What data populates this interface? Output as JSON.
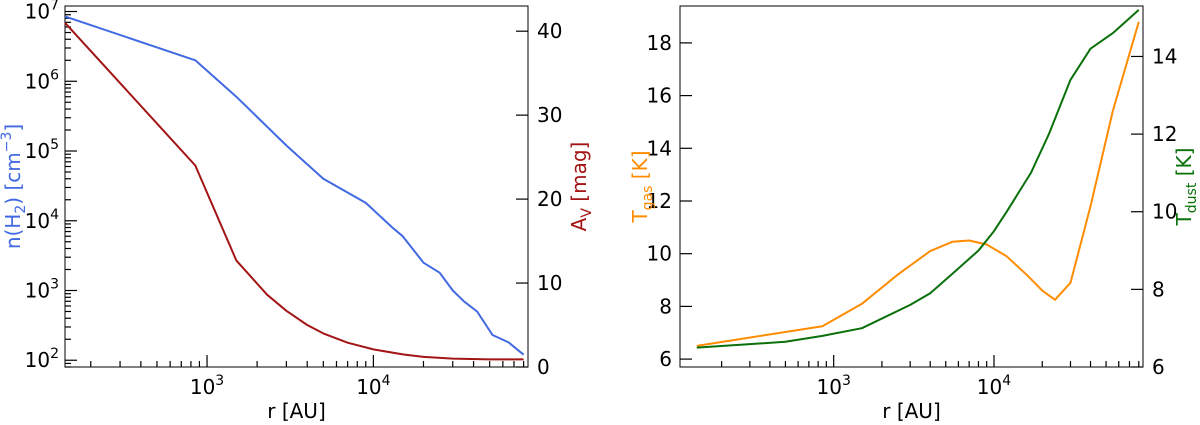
{
  "colors": {
    "density": "#4169e1",
    "av": "#a31515",
    "tgas": "#ff8c00",
    "tdust": "#0a700a"
  },
  "chart_data": [
    {
      "type": "line",
      "xscale": "log",
      "xlim": [
        140,
        85000
      ],
      "xlabel": "r [AU]",
      "xticks": [
        {
          "value": 1000,
          "base": "10",
          "exp": "3"
        },
        {
          "value": 10000,
          "base": "10",
          "exp": "4"
        }
      ],
      "y_left": {
        "scale": "log",
        "lim": [
          80,
          12000000
        ],
        "label": {
          "prefix": "n(H",
          "sub": "2",
          "middle": ") [cm",
          "sup": "−3",
          "suffix": "]"
        },
        "ticks": [
          {
            "value": 100,
            "base": "10",
            "exp": "2"
          },
          {
            "value": 1000,
            "base": "10",
            "exp": "3"
          },
          {
            "value": 10000,
            "base": "10",
            "exp": "4"
          },
          {
            "value": 100000,
            "base": "10",
            "exp": "5"
          },
          {
            "value": 1000000,
            "base": "10",
            "exp": "6"
          },
          {
            "value": 10000000,
            "base": "10",
            "exp": "7"
          }
        ]
      },
      "y_right": {
        "scale": "linear",
        "lim": [
          0,
          43
        ],
        "label": {
          "prefix": "A",
          "sub": "V",
          "suffix": " [mag]"
        },
        "ticks": [
          "0",
          "10",
          "20",
          "30",
          "40"
        ]
      },
      "series": [
        {
          "key": "density",
          "axis": "left",
          "x": [
            140,
            850,
            1500,
            3000,
            5000,
            9000,
            13000,
            15000,
            20000,
            25000,
            30000,
            35000,
            42000,
            52000,
            65000,
            80000
          ],
          "y": [
            8500000,
            2000000,
            600000,
            120000,
            40000,
            18000,
            8000,
            6000,
            2500,
            1800,
            1000,
            700,
            500,
            230,
            180,
            120
          ]
        },
        {
          "key": "av",
          "axis": "right",
          "x": [
            140,
            850,
            1500,
            2300,
            3000,
            4000,
            5000,
            7000,
            10000,
            15000,
            20000,
            30000,
            50000,
            80000
          ],
          "y": [
            41,
            24,
            12.7,
            8.6,
            6.7,
            5.0,
            4.0,
            2.9,
            2.1,
            1.5,
            1.2,
            1.0,
            0.9,
            0.9
          ]
        }
      ]
    },
    {
      "type": "line",
      "xscale": "log",
      "xlim": [
        110,
        85000
      ],
      "xlabel": "r [AU]",
      "xticks": [
        {
          "value": 1000,
          "base": "10",
          "exp": "3"
        },
        {
          "value": 10000,
          "base": "10",
          "exp": "4"
        }
      ],
      "y_left": {
        "scale": "linear",
        "lim": [
          5.7,
          19.4
        ],
        "label": {
          "prefix": "T",
          "sub": "gas",
          "suffix": " [K]"
        },
        "ticks": [
          "6",
          "8",
          "10",
          "12",
          "14",
          "16",
          "18"
        ]
      },
      "y_right": {
        "scale": "linear",
        "lim": [
          6.0,
          15.3
        ],
        "label": {
          "prefix": "T",
          "sub": "dust",
          "suffix": " [K]"
        },
        "ticks": [
          "6",
          "8",
          "10",
          "12",
          "14"
        ]
      },
      "series": [
        {
          "key": "tgas",
          "axis": "left",
          "x": [
            140,
            850,
            1500,
            2500,
            4000,
            5500,
            7000,
            9000,
            12000,
            16000,
            20000,
            24000,
            30000,
            40000,
            55000,
            80000
          ],
          "y": [
            6.5,
            7.25,
            8.1,
            9.2,
            10.1,
            10.45,
            10.5,
            10.35,
            9.9,
            9.2,
            8.6,
            8.25,
            8.9,
            11.8,
            15.4,
            18.8
          ]
        },
        {
          "key": "tdust",
          "axis": "right",
          "x": [
            140,
            500,
            850,
            1500,
            3000,
            4000,
            5500,
            8000,
            10000,
            12000,
            17000,
            22000,
            30000,
            40000,
            55000,
            80000
          ],
          "y": [
            6.5,
            6.65,
            6.8,
            7.0,
            7.6,
            7.9,
            8.4,
            9.0,
            9.5,
            10.0,
            11.0,
            12.0,
            13.4,
            14.2,
            14.6,
            15.2
          ]
        }
      ]
    }
  ]
}
